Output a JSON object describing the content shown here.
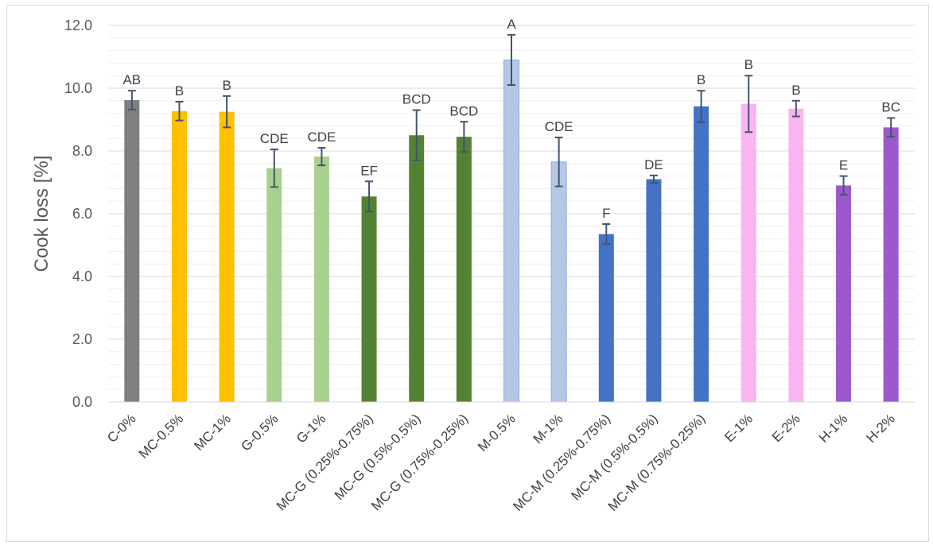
{
  "chart_data": {
    "type": "bar",
    "title": "",
    "xlabel": "",
    "ylabel": "Cook loss [%]",
    "ylim": [
      0,
      12
    ],
    "yticks": [
      "0.0",
      "2.0",
      "4.0",
      "6.0",
      "8.0",
      "10.0",
      "12.0"
    ],
    "grid": true,
    "legend": "none",
    "categories": [
      "C-0%",
      "MC-0.5%",
      "MC-1%",
      "G-0.5%",
      "G-1%",
      "MC-G (0.25%-0.75%)",
      "MC-G (0.5%-0.5%)",
      "MC-G (0.75%-0.25%)",
      "M-0.5%",
      "M-1%",
      "MC-M (0.25%-0.75%)",
      "MC-M (0.5%-0.5%)",
      "MC-M (0.75%-0.25%)",
      "E-1%",
      "E-2%",
      "H-1%",
      "H-2%"
    ],
    "values": [
      9.62,
      9.27,
      9.25,
      7.45,
      7.82,
      6.55,
      8.5,
      8.45,
      10.9,
      7.65,
      5.35,
      7.1,
      9.42,
      9.5,
      9.35,
      6.9,
      8.75
    ],
    "errors": [
      0.3,
      0.3,
      0.5,
      0.6,
      0.28,
      0.48,
      0.8,
      0.48,
      0.8,
      0.78,
      0.32,
      0.12,
      0.5,
      0.9,
      0.25,
      0.3,
      0.3
    ],
    "letters": [
      "AB",
      "B",
      "B",
      "CDE",
      "CDE",
      "EF",
      "BCD",
      "BCD",
      "A",
      "CDE",
      "F",
      "DE",
      "B",
      "B",
      "B",
      "E",
      "BC"
    ],
    "colors": [
      "#7f7f7f",
      "#ffc000",
      "#ffc000",
      "#a9d18e",
      "#a9d18e",
      "#548235",
      "#548235",
      "#548235",
      "#b4c7e7",
      "#b4c7e7",
      "#4472c4",
      "#4472c4",
      "#4472c4",
      "#f8b5f2",
      "#f8b5f2",
      "#9b59cb",
      "#9b59cb"
    ],
    "error_bar_color": "#44546a"
  }
}
